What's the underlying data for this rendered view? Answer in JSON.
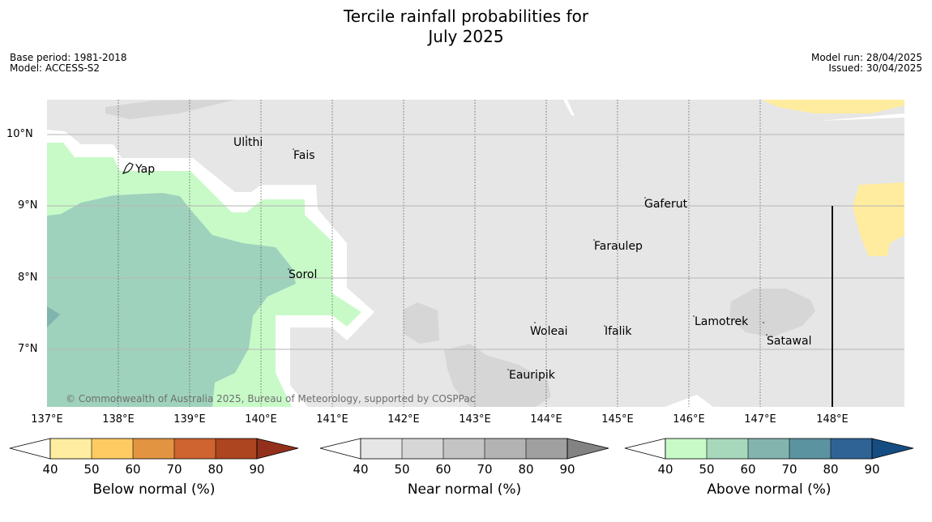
{
  "header": {
    "title_line1": "Tercile rainfall probabilities for",
    "title_line2": "July 2025",
    "base_period": "Base period: 1981-2018",
    "model": "Model: ACCESS-S2",
    "model_run": "Model run: 28/04/2025",
    "issued": "Issued: 30/04/2025"
  },
  "map": {
    "copyright": "© Commonwealth of Australia 2025, Bureau of Meteorology, supported by COSPPac",
    "x_ticks": [
      "137°E",
      "138°E",
      "139°E",
      "140°E",
      "141°E",
      "142°E",
      "143°E",
      "144°E",
      "145°E",
      "146°E",
      "147°E",
      "148°E"
    ],
    "y_ticks": [
      "10°N",
      "9°N",
      "8°N",
      "7°N"
    ],
    "places": [
      "Ulithi",
      "Fais",
      "Yap",
      "Gaferut",
      "Faraulep",
      "Sorol",
      "Lamotrek",
      "Woleai",
      "Ifalik",
      "Satawal",
      "Eauripik"
    ],
    "colors": {
      "ocean_base": "#e6e6e6",
      "near_normal_50": "#d6d6d6",
      "above_normal_40": "#c8fac8",
      "above_normal_50": "#9fd2bd",
      "above_normal_60": "#7fb3ae",
      "below_normal_40": "#ffec9e"
    }
  },
  "colorbars": [
    {
      "label": "Below normal (%)",
      "ticks": [
        "40",
        "50",
        "60",
        "70",
        "80",
        "90"
      ],
      "colors": [
        "#ffeea1",
        "#fecb63",
        "#e29441",
        "#cf6430",
        "#ae4521",
        "#93301c"
      ]
    },
    {
      "label": "Near normal (%)",
      "ticks": [
        "40",
        "50",
        "60",
        "70",
        "80",
        "90"
      ],
      "colors": [
        "#e6e6e6",
        "#d6d6d6",
        "#c4c4c4",
        "#b3b3b3",
        "#a0a0a0",
        "#838383"
      ]
    },
    {
      "label": "Above normal (%)",
      "ticks": [
        "40",
        "50",
        "60",
        "70",
        "80",
        "90"
      ],
      "colors": [
        "#c8fac8",
        "#a8d8bc",
        "#83b5ae",
        "#5b94a0",
        "#2f6396",
        "#154d83"
      ]
    }
  ]
}
